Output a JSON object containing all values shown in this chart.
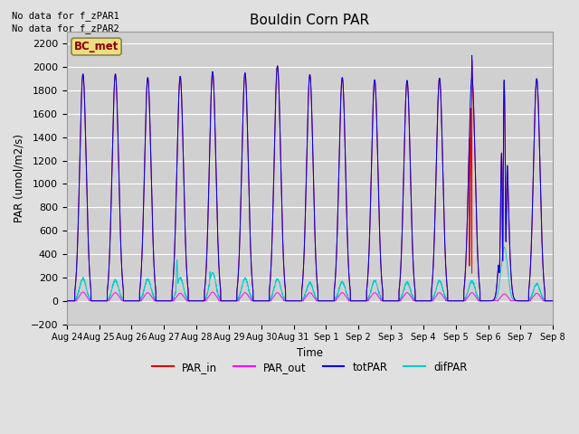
{
  "title": "Bouldin Corn PAR",
  "ylabel": "PAR (umol/m2/s)",
  "xlabel": "Time",
  "no_data_text": [
    "No data for f_zPAR1",
    "No data for f_zPAR2"
  ],
  "legend_label": "BC_met",
  "ylim": [
    -200,
    2300
  ],
  "yticks": [
    -200,
    0,
    200,
    400,
    600,
    800,
    1000,
    1200,
    1400,
    1600,
    1800,
    2000,
    2200
  ],
  "fig_bg_color": "#e0e0e0",
  "plot_bg_color": "#d0d0d0",
  "line_colors": {
    "PAR_in": "#dd0000",
    "PAR_out": "#ff00ff",
    "totPAR": "#0000ee",
    "difPAR": "#00cccc"
  },
  "n_days": 15,
  "tick_labels": [
    "Aug 24",
    "Aug 25",
    "Aug 26",
    "Aug 27",
    "Aug 28",
    "Aug 29",
    "Aug 30",
    "Aug 31",
    "Sep 1",
    "Sep 2",
    "Sep 3",
    "Sep 4",
    "Sep 5",
    "Sep 6",
    "Sep 7",
    "Sep 8"
  ]
}
